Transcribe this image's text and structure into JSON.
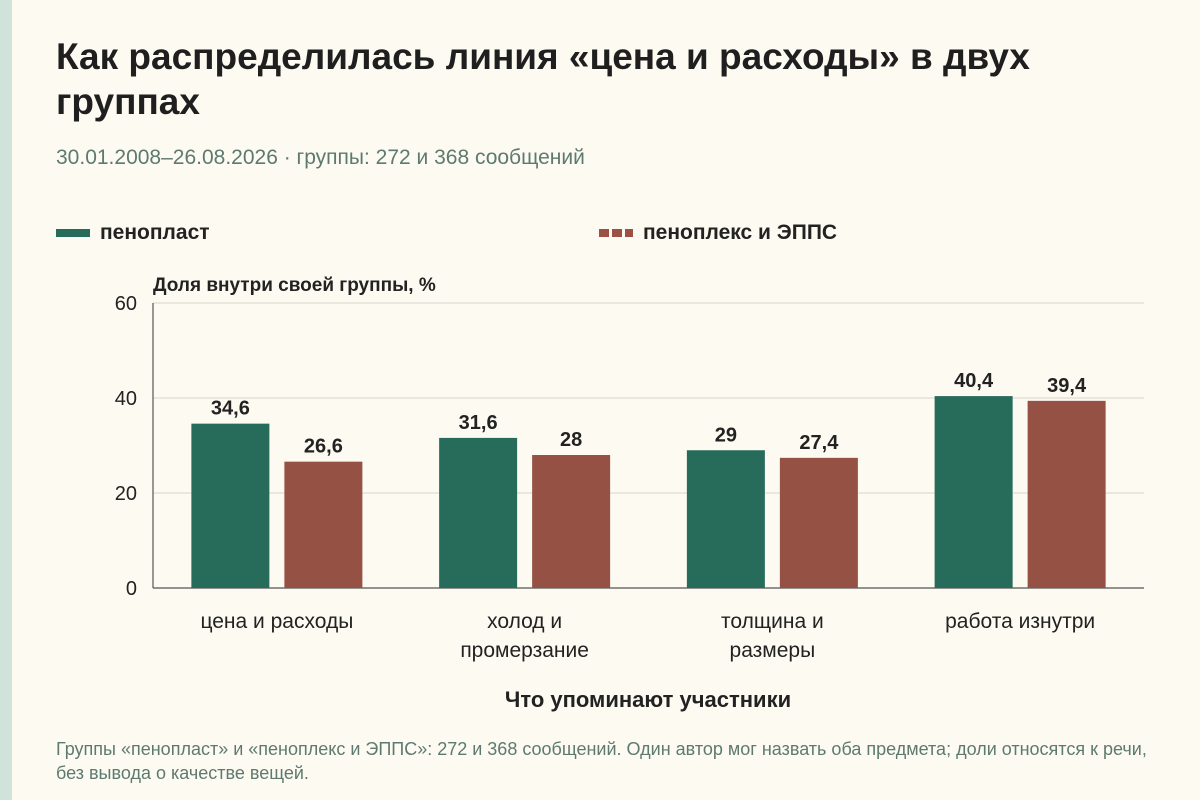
{
  "header": {
    "title": "Как распределилась линия «цена и расходы» в двух группах",
    "subtitle": "30.01.2008–26.08.2026 · группы: 272 и 368 сообщений"
  },
  "chart_data": {
    "type": "bar",
    "title": "Как распределилась линия «цена и расходы» в двух группах",
    "ylabel": "Доля внутри своей группы, %",
    "xlabel": "Что упоминают участники",
    "ylim": [
      0,
      60
    ],
    "yticks": [
      0,
      20,
      40,
      60
    ],
    "grid": true,
    "legend_position": "top",
    "categories": [
      "цена и расходы",
      "холод и промерзание",
      "толщина и размеры",
      "работа изнутри"
    ],
    "series": [
      {
        "name": "пенопласт",
        "color": "#276b5a",
        "values": [
          34.6,
          31.6,
          29,
          40.4
        ],
        "labels": [
          "34,6",
          "31,6",
          "29",
          "40,4"
        ]
      },
      {
        "name": "пеноплекс и ЭППС",
        "color": "#955244",
        "values": [
          26.6,
          28,
          27.4,
          39.4
        ],
        "labels": [
          "26,6",
          "28",
          "27,4",
          "39,4"
        ]
      }
    ]
  },
  "footer": {
    "note": "Группы «пенопласт» и «пеноплекс и ЭППС»: 272 и 368 сообщений. Один автор мог назвать оба предмета; доли относятся к речи, без вывода о качестве вещей."
  }
}
